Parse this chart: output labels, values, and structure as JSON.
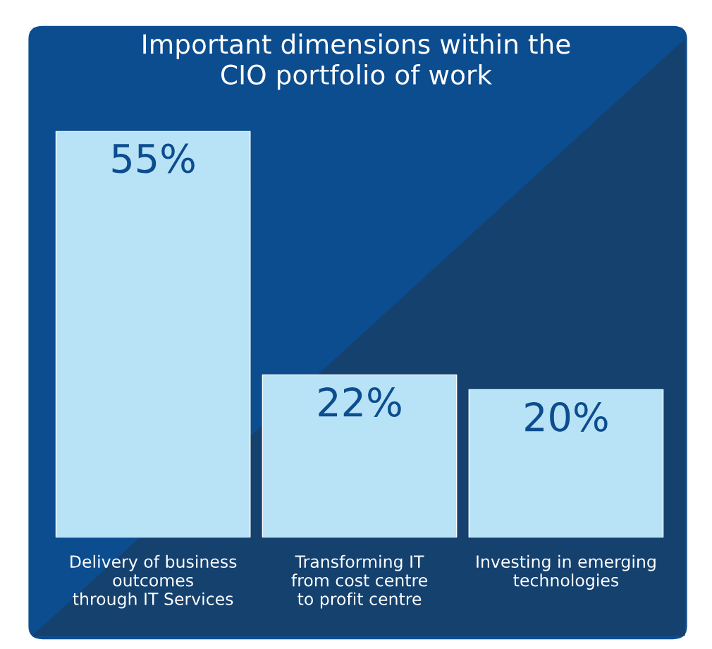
{
  "chart_data": {
    "type": "bar",
    "title": "Important dimensions within the\nCIO portfolio of work",
    "categories": [
      "Delivery of business\noutcomes\nthrough IT Services",
      "Transforming IT\nfrom cost centre\nto profit centre",
      "Investing in emerging\ntechnologies"
    ],
    "values": [
      55,
      22,
      20
    ],
    "value_labels": [
      "55%",
      "22%",
      "20%"
    ],
    "color": "#b8e2f5"
  }
}
